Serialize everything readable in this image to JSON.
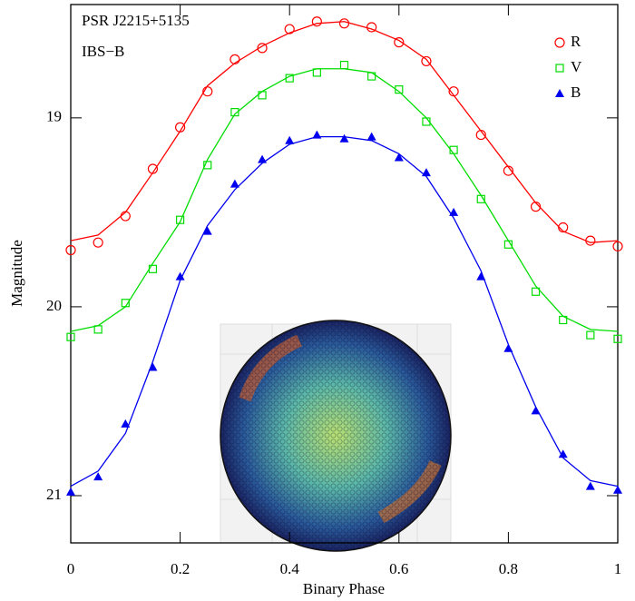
{
  "chart_data": {
    "type": "scatter",
    "annotations": [
      "PSR J2215+5135",
      "IBS−B"
    ],
    "x_label": "Binary Phase",
    "y_label": "Magnitude",
    "x": [
      0,
      0.05,
      0.1,
      0.15,
      0.2,
      0.25,
      0.3,
      0.35,
      0.4,
      0.45,
      0.5,
      0.55,
      0.6,
      0.65,
      0.7,
      0.75,
      0.8,
      0.85,
      0.9,
      0.95,
      1.0
    ],
    "series": [
      {
        "name": "R",
        "color": "#ff0000",
        "marker": "circle",
        "values": [
          19.7,
          19.66,
          19.52,
          19.27,
          19.05,
          18.86,
          18.69,
          18.63,
          18.53,
          18.49,
          18.5,
          18.52,
          18.6,
          18.7,
          18.86,
          19.09,
          19.28,
          19.47,
          19.58,
          19.65,
          19.68
        ],
        "fit_values": [
          19.65,
          19.62,
          19.5,
          19.29,
          19.07,
          18.83,
          18.71,
          18.62,
          18.55,
          18.5,
          18.49,
          18.53,
          18.59,
          18.69,
          18.88,
          19.07,
          19.26,
          19.45,
          19.6,
          19.66,
          19.65
        ]
      },
      {
        "name": "V",
        "color": "#00dd00",
        "marker": "square",
        "values": [
          20.16,
          20.12,
          19.98,
          19.8,
          19.54,
          19.25,
          18.97,
          18.88,
          18.79,
          18.76,
          18.72,
          18.78,
          18.85,
          19.02,
          19.17,
          19.43,
          19.67,
          19.92,
          20.07,
          20.15,
          20.17
        ],
        "fit_values": [
          20.13,
          20.1,
          20.0,
          19.77,
          19.55,
          19.22,
          18.98,
          18.86,
          18.78,
          18.74,
          18.74,
          18.76,
          18.86,
          19.0,
          19.19,
          19.41,
          19.65,
          19.89,
          20.05,
          20.12,
          20.13
        ]
      },
      {
        "name": "B",
        "color": "#0000ee",
        "marker": "triangle",
        "values": [
          20.98,
          20.9,
          20.62,
          20.32,
          19.84,
          19.6,
          19.35,
          19.22,
          19.12,
          19.09,
          19.11,
          19.1,
          19.21,
          19.29,
          19.5,
          19.84,
          20.22,
          20.55,
          20.78,
          20.95,
          20.97
        ],
        "fit_values": [
          20.95,
          20.87,
          20.67,
          20.29,
          19.86,
          19.57,
          19.38,
          19.24,
          19.14,
          19.1,
          19.1,
          19.12,
          19.19,
          19.31,
          19.53,
          19.81,
          20.2,
          20.53,
          20.8,
          20.92,
          20.95
        ]
      }
    ],
    "xlim": [
      0,
      1
    ],
    "xticks": [
      0,
      0.2,
      0.4,
      0.6,
      0.8,
      1
    ],
    "ylim": [
      18.4,
      21.25
    ],
    "yticks": [
      19,
      20,
      21
    ],
    "y_inverted": true,
    "legend": "upper right"
  }
}
